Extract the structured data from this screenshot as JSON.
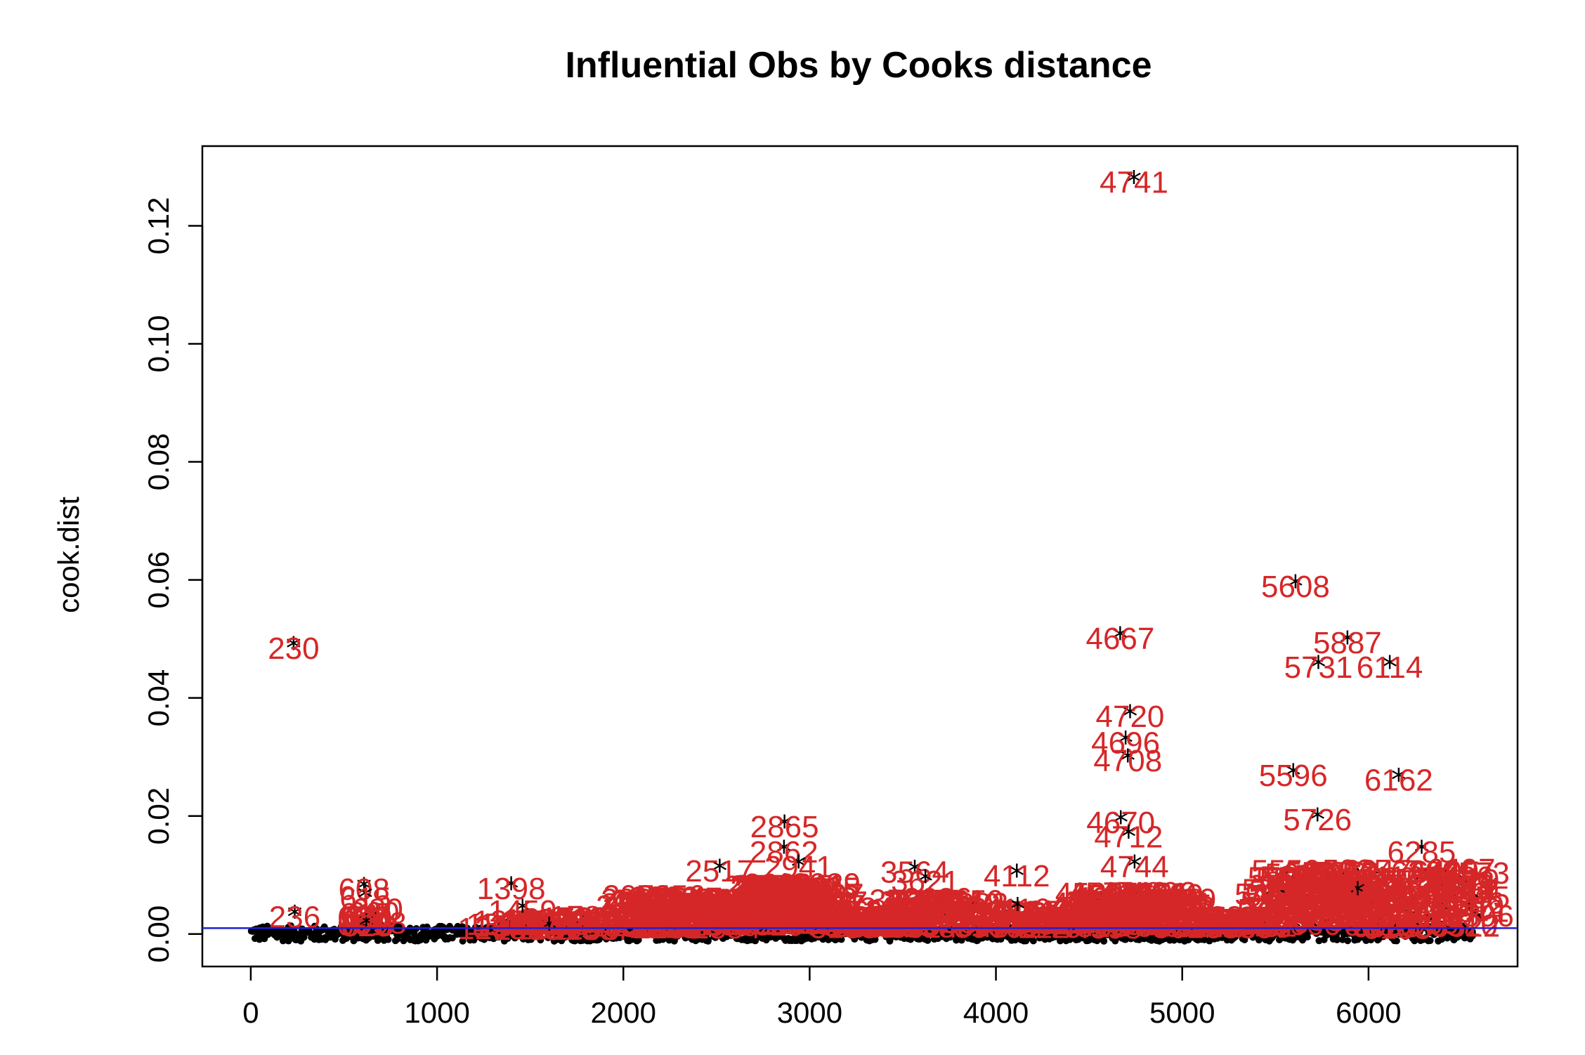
{
  "chart_data": {
    "type": "scatter",
    "title": "Influential Obs by Cooks distance",
    "xlabel": "",
    "ylabel": "cook.dist",
    "xlim": [
      -260,
      6800
    ],
    "ylim": [
      -0.0055,
      0.1335
    ],
    "xticks": [
      0,
      1000,
      2000,
      3000,
      4000,
      5000,
      6000
    ],
    "yticks": [
      0.0,
      0.02,
      0.04,
      0.06,
      0.08,
      0.1,
      0.12
    ],
    "ytick_labels": [
      "0.00",
      "0.02",
      "0.04",
      "0.06",
      "0.08",
      "0.10",
      "0.12"
    ],
    "reference_line": {
      "y": 0.001,
      "color": "#1f1fd6"
    },
    "point_color": "#000000",
    "label_color": "#d62728",
    "labeled_points": [
      {
        "x": 4741,
        "y": 0.1275,
        "label": "4741"
      },
      {
        "x": 5608,
        "y": 0.059,
        "label": "5608"
      },
      {
        "x": 230,
        "y": 0.0485,
        "label": "230"
      },
      {
        "x": 4667,
        "y": 0.0502,
        "label": "4667"
      },
      {
        "x": 5887,
        "y": 0.0495,
        "label": "5887"
      },
      {
        "x": 5731,
        "y": 0.0453,
        "label": "5731"
      },
      {
        "x": 6114,
        "y": 0.0453,
        "label": "6114"
      },
      {
        "x": 4720,
        "y": 0.037,
        "label": "4720"
      },
      {
        "x": 4696,
        "y": 0.0325,
        "label": "4696"
      },
      {
        "x": 4708,
        "y": 0.0295,
        "label": "4708"
      },
      {
        "x": 5596,
        "y": 0.027,
        "label": "5596"
      },
      {
        "x": 6162,
        "y": 0.0262,
        "label": "6162"
      },
      {
        "x": 2865,
        "y": 0.0183,
        "label": "2865"
      },
      {
        "x": 2862,
        "y": 0.014,
        "label": "2862"
      },
      {
        "x": 2941,
        "y": 0.0115,
        "label": "2941"
      },
      {
        "x": 2517,
        "y": 0.0108,
        "label": "2517"
      },
      {
        "x": 4670,
        "y": 0.019,
        "label": "4670"
      },
      {
        "x": 4712,
        "y": 0.0166,
        "label": "4712"
      },
      {
        "x": 4744,
        "y": 0.0115,
        "label": "4744"
      },
      {
        "x": 5726,
        "y": 0.0195,
        "label": "5726"
      },
      {
        "x": 6285,
        "y": 0.014,
        "label": "6285"
      },
      {
        "x": 3564,
        "y": 0.0106,
        "label": "3564"
      },
      {
        "x": 3621,
        "y": 0.009,
        "label": "3621"
      },
      {
        "x": 4112,
        "y": 0.01,
        "label": "4112"
      },
      {
        "x": 4116,
        "y": 0.0043,
        "label": "4116"
      },
      {
        "x": 1398,
        "y": 0.0078,
        "label": "1398"
      },
      {
        "x": 608,
        "y": 0.0077,
        "label": "608"
      },
      {
        "x": 615,
        "y": 0.0062,
        "label": "615"
      },
      {
        "x": 236,
        "y": 0.003,
        "label": "236"
      },
      {
        "x": 620,
        "y": 0.0015,
        "label": "620"
      },
      {
        "x": 1459,
        "y": 0.004,
        "label": "1459"
      },
      {
        "x": 1602,
        "y": 0.001,
        "label": "1602"
      },
      {
        "x": 5942,
        "y": 0.007,
        "label": "5942"
      }
    ]
  }
}
